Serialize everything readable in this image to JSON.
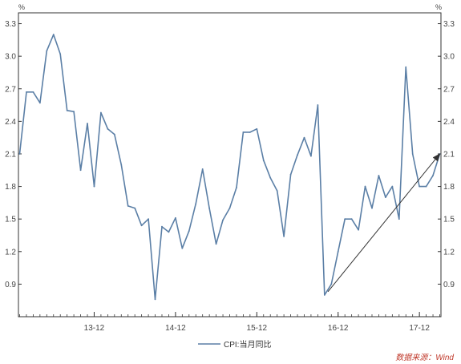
{
  "chart_data": {
    "type": "line",
    "y_unit": "%",
    "ylim": [
      0.6,
      3.4
    ],
    "yticks": [
      "0.9",
      "1.2",
      "1.5",
      "1.8",
      "2.1",
      "2.4",
      "2.7",
      "3.0",
      "3.3"
    ],
    "ytick_values": [
      0.9,
      1.2,
      1.5,
      1.8,
      2.1,
      2.4,
      2.7,
      3.0,
      3.3
    ],
    "x_tick_labels": [
      "13-12",
      "14-12",
      "15-12",
      "16-12",
      "17-12"
    ],
    "x_tick_index": [
      11,
      23,
      35,
      47,
      59
    ],
    "series": [
      {
        "name": "CPI:当月同比",
        "color": "#5b7fa6",
        "values": [
          2.1,
          2.67,
          2.67,
          2.57,
          3.05,
          3.2,
          3.02,
          2.5,
          2.49,
          1.95,
          2.38,
          1.8,
          2.48,
          2.33,
          2.28,
          2.0,
          1.62,
          1.6,
          1.44,
          1.5,
          0.76,
          1.43,
          1.38,
          1.51,
          1.23,
          1.39,
          1.64,
          1.96,
          1.6,
          1.27,
          1.49,
          1.6,
          1.79,
          2.3,
          2.3,
          2.33,
          2.04,
          1.88,
          1.76,
          1.34,
          1.91,
          2.09,
          2.25,
          2.08,
          2.55,
          0.8,
          0.9,
          1.2,
          1.5,
          1.5,
          1.4,
          1.8,
          1.6,
          1.9,
          1.7,
          1.8,
          1.5,
          2.9,
          2.1,
          1.8,
          1.8,
          1.9,
          2.1
        ]
      }
    ],
    "annotation": {
      "type": "arrow",
      "from_index": 45.5,
      "from_value": 0.83,
      "to_index": 62,
      "to_value": 2.1
    },
    "grid": false,
    "legend_position": "bottom-center"
  },
  "source_label": "数据来源：Wind"
}
